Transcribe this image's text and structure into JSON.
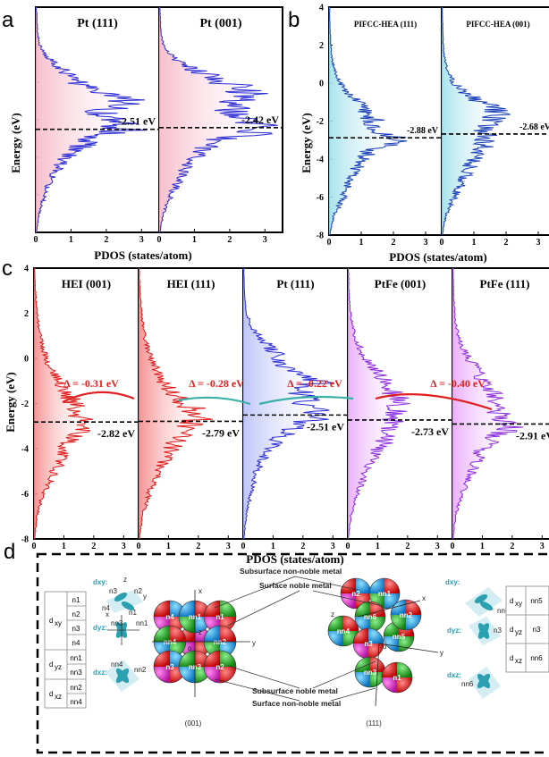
{
  "colors": {
    "pt_blue": "#2b2bd6",
    "hea_blue": "#1a3fb8",
    "hei_red": "#e01818",
    "ptfe_purple": "#8b2be0",
    "delta_red": "#e02020",
    "arrow_teal": "#3bb0a8"
  },
  "panels": {
    "a": {
      "label": "a",
      "titles": [
        "Pt (111)",
        "Pt (001)"
      ],
      "ann": [
        "-2.51 eV",
        "-2.42 eV"
      ]
    },
    "b": {
      "label": "b",
      "titles": [
        "PIFCC-HEA (111)",
        "PIFCC-HEA (001)"
      ],
      "ann": [
        "-2.88 eV",
        "-2.68 eV"
      ]
    },
    "c": {
      "label": "c",
      "titles": [
        "HEI (001)",
        "HEI (111)",
        "Pt (111)",
        "PtFe (001)",
        "PtFe (111)"
      ],
      "ann": [
        "-2.82 eV",
        "-2.79 eV",
        "-2.51 eV",
        "-2.73 eV",
        "-2.91 eV"
      ],
      "deltas": [
        "Δ = -0.31 eV",
        "Δ = -0.28 eV",
        "Δ = -0.22 eV",
        "Δ = -0.40 eV"
      ]
    },
    "d": {
      "label": "d"
    }
  },
  "axes": {
    "ylabel": "Energy (eV)",
    "xlabel": "PDOS (states/atom)"
  },
  "diagram": {
    "left_table": {
      "rows": [
        [
          "d",
          "xy",
          "n1"
        ],
        [
          "",
          "",
          "n2"
        ],
        [
          "",
          "",
          "n3"
        ],
        [
          "",
          "",
          "n4"
        ],
        [
          "d",
          "yz",
          "nn1"
        ],
        [
          "",
          "",
          "nn3"
        ],
        [
          "d",
          "xz",
          "nn2"
        ],
        [
          "",
          "",
          "nn4"
        ]
      ]
    },
    "right_table": {
      "rows": [
        [
          "d",
          "xy",
          "nn5"
        ],
        [
          "d",
          "yz",
          "n3"
        ],
        [
          "d",
          "xz",
          "nn6"
        ]
      ]
    },
    "labels": {
      "subsurface_nonnoble": "Subsurface non-noble metal",
      "surface_noble": "Surface noble metal",
      "subsurface_noble": "Subsurface noble metal",
      "surface_nonnoble": "Surface non-noble metal",
      "facet_001": "(001)",
      "facet_111": "(111)"
    },
    "orbitals_left": [
      "dxy:",
      "dyz:",
      "dxz:"
    ],
    "orbitals_right": [
      "dxy:",
      "dyz:",
      "dxz:"
    ],
    "spheres_001": [
      "n4",
      "nn1",
      "n1",
      "nn4",
      "nn2",
      "n3",
      "nn3",
      "n2"
    ],
    "spheres_111": [
      "n2",
      "nn1",
      "nn6",
      "nn4",
      "n3",
      "nn5",
      "nn2",
      "nn3",
      "n1"
    ],
    "axis_letters": {
      "x": "x",
      "y": "y",
      "z": "z",
      "o": "o"
    }
  },
  "chart_data": [
    {
      "type": "line",
      "panel": "a",
      "title": "",
      "xlabel": "PDOS (states/atom)",
      "ylabel": "Energy (eV)",
      "xlim": [
        0,
        3.5
      ],
      "xticks": [
        0,
        1,
        2,
        3
      ],
      "series": [
        {
          "name": "Pt (111)",
          "d_band_center": -2.51,
          "energy": [
            -8,
            -7,
            -6,
            -5,
            -4,
            -3.5,
            -3,
            -2.5,
            -2,
            -1.5,
            -1,
            -0.5,
            0,
            0.5,
            1,
            1.5,
            2,
            2.5,
            3,
            3.5,
            4
          ],
          "pdos": [
            0.02,
            0.1,
            0.25,
            0.45,
            0.85,
            1.2,
            1.7,
            2.6,
            2.1,
            1.9,
            2.7,
            1.6,
            1.2,
            0.9,
            0.5,
            0.25,
            0.12,
            0.06,
            0.04,
            0.03,
            0.02
          ]
        },
        {
          "name": "Pt (001)",
          "d_band_center": -2.42,
          "energy": [
            -8,
            -7,
            -6,
            -5,
            -4,
            -3.5,
            -3,
            -2.5,
            -2,
            -1.5,
            -1,
            -0.5,
            0,
            0.5,
            1,
            1.5,
            2,
            2.5,
            3,
            3.5,
            4
          ],
          "pdos": [
            0.02,
            0.12,
            0.35,
            0.6,
            1.0,
            1.3,
            1.8,
            3.4,
            2.2,
            2.0,
            2.4,
            2.6,
            1.9,
            1.2,
            0.6,
            0.3,
            0.12,
            0.06,
            0.04,
            0.03,
            0.02
          ]
        }
      ]
    },
    {
      "type": "line",
      "panel": "b",
      "title": "",
      "xlabel": "PDOS (states/atom)",
      "ylabel": "Energy (eV)",
      "xlim": [
        0,
        3.5
      ],
      "ylim": [
        -8,
        4
      ],
      "xticks": [
        0,
        1,
        2,
        3
      ],
      "yticks": [
        -8,
        -6,
        -4,
        -2,
        0,
        2,
        4
      ],
      "series": [
        {
          "name": "PIFCC-HEA (111)",
          "d_band_center": -2.88,
          "energy": [
            -8,
            -7,
            -6,
            -5,
            -4,
            -3.5,
            -3,
            -2.5,
            -2,
            -1.5,
            -1,
            -0.5,
            0,
            0.5,
            1,
            1.5,
            2,
            2.5,
            3,
            3.5,
            4
          ],
          "pdos": [
            0.02,
            0.15,
            0.45,
            0.7,
            1.0,
            1.4,
            2.2,
            1.3,
            1.4,
            1.2,
            0.9,
            0.6,
            0.35,
            0.2,
            0.12,
            0.08,
            0.05,
            0.04,
            0.03,
            0.02,
            0.02
          ]
        },
        {
          "name": "PIFCC-HEA (001)",
          "d_band_center": -2.68,
          "energy": [
            -8,
            -7,
            -6,
            -5,
            -4,
            -3.5,
            -3,
            -2.5,
            -2,
            -1.5,
            -1,
            -0.5,
            0,
            0.5,
            1,
            1.5,
            2,
            2.5,
            3,
            3.5,
            4
          ],
          "pdos": [
            0.02,
            0.12,
            0.4,
            0.7,
            1.0,
            1.2,
            1.4,
            1.3,
            1.7,
            1.8,
            1.2,
            0.7,
            0.4,
            0.22,
            0.12,
            0.08,
            0.05,
            0.04,
            0.03,
            0.02,
            0.02
          ]
        }
      ]
    },
    {
      "type": "line",
      "panel": "c",
      "title": "",
      "xlabel": "PDOS (states/atom)",
      "ylabel": "Energy (eV)",
      "xlim": [
        0,
        3.5
      ],
      "ylim": [
        -8,
        4
      ],
      "xticks": [
        0,
        1,
        2,
        3
      ],
      "yticks": [
        -8,
        -6,
        -4,
        -2,
        0,
        2,
        4
      ],
      "series": [
        {
          "name": "HEI (001)",
          "d_band_center": -2.82,
          "energy": [
            -8,
            -7,
            -6,
            -5,
            -4,
            -3.5,
            -3,
            -2.5,
            -2,
            -1.5,
            -1,
            -0.5,
            0,
            0.5,
            1,
            1.5,
            2,
            2.5,
            3,
            3.5,
            4
          ],
          "pdos": [
            0.02,
            0.1,
            0.3,
            0.7,
            1.1,
            1.3,
            1.7,
            1.5,
            1.4,
            1.0,
            0.8,
            0.6,
            0.4,
            0.3,
            0.2,
            0.15,
            0.1,
            0.08,
            0.05,
            0.03,
            0.02
          ]
        },
        {
          "name": "HEI (111)",
          "d_band_center": -2.79,
          "energy": [
            -8,
            -7,
            -6,
            -5,
            -4,
            -3.5,
            -3,
            -2.5,
            -2,
            -1.5,
            -1,
            -0.5,
            0,
            0.5,
            1,
            1.5,
            2,
            2.5,
            3,
            3.5,
            4
          ],
          "pdos": [
            0.02,
            0.12,
            0.35,
            0.7,
            1.1,
            1.4,
            1.6,
            2.2,
            1.5,
            1.1,
            0.8,
            0.6,
            0.4,
            0.3,
            0.2,
            0.15,
            0.1,
            0.07,
            0.05,
            0.03,
            0.02
          ]
        },
        {
          "name": "Pt (111)",
          "d_band_center": -2.51,
          "energy": [
            -8,
            -7,
            -6,
            -5,
            -4,
            -3.5,
            -3,
            -2.5,
            -2,
            -1.5,
            -1,
            -0.5,
            0,
            0.5,
            1,
            1.5,
            2,
            2.5,
            3,
            3.5,
            4
          ],
          "pdos": [
            0.02,
            0.1,
            0.25,
            0.45,
            0.85,
            1.2,
            1.7,
            2.6,
            2.1,
            1.9,
            2.7,
            1.6,
            1.2,
            0.9,
            0.5,
            0.25,
            0.12,
            0.06,
            0.04,
            0.03,
            0.02
          ]
        },
        {
          "name": "PtFe (001)",
          "d_band_center": -2.73,
          "energy": [
            -8,
            -7,
            -6,
            -5,
            -4,
            -3.5,
            -3,
            -2.5,
            -2,
            -1.5,
            -1,
            -0.5,
            0,
            0.5,
            1,
            1.5,
            2,
            2.5,
            3,
            3.5,
            4
          ],
          "pdos": [
            0.02,
            0.1,
            0.3,
            0.6,
            1.0,
            1.4,
            1.5,
            1.6,
            1.8,
            1.5,
            1.2,
            0.9,
            0.6,
            0.4,
            0.25,
            0.15,
            0.1,
            0.06,
            0.04,
            0.03,
            0.02
          ]
        },
        {
          "name": "PtFe (111)",
          "d_band_center": -2.91,
          "energy": [
            -8,
            -7,
            -6,
            -5,
            -4,
            -3.5,
            -3,
            -2.5,
            -2,
            -1.5,
            -1,
            -0.5,
            0,
            0.5,
            1,
            1.5,
            2,
            2.5,
            3,
            3.5,
            4
          ],
          "pdos": [
            0.02,
            0.1,
            0.3,
            0.65,
            1.0,
            1.4,
            2.1,
            1.6,
            1.5,
            1.3,
            1.0,
            0.8,
            0.55,
            0.35,
            0.2,
            0.12,
            0.08,
            0.05,
            0.04,
            0.03,
            0.02
          ]
        }
      ]
    }
  ]
}
